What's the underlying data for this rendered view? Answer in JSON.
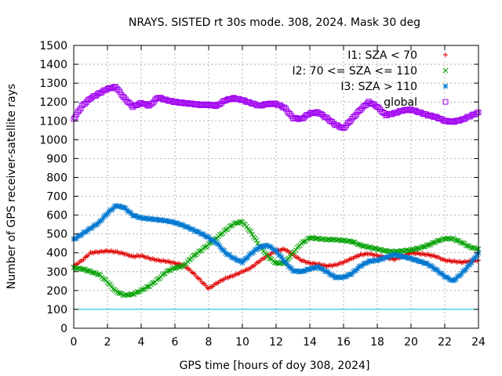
{
  "chart_data": {
    "type": "scatter",
    "title": "NRAYS. SISTED rt 30s mode. 308, 2024. Mask 30 deg",
    "xlabel": "GPS time [hours of doy 308, 2024]",
    "ylabel": "Number of GPS receiver-satellite rays",
    "xlim": [
      0,
      24
    ],
    "ylim": [
      0,
      1500
    ],
    "x_ticks": [
      0,
      2,
      4,
      6,
      8,
      10,
      12,
      14,
      16,
      18,
      20,
      22,
      24
    ],
    "y_ticks": [
      0,
      100,
      200,
      300,
      400,
      500,
      600,
      700,
      800,
      900,
      1000,
      1100,
      1200,
      1300,
      1400,
      1500
    ],
    "grid": true,
    "legend_position": "top-right",
    "reference_line": {
      "y": 100,
      "color": "#00c0d0"
    },
    "series": [
      {
        "name": "I1: SZA < 70",
        "marker": "+",
        "color": "#e00000",
        "x": [
          0,
          0.5,
          1,
          1.5,
          2,
          2.5,
          3,
          3.5,
          4,
          4.5,
          5,
          5.5,
          6,
          6.5,
          7,
          7.5,
          8,
          8.5,
          9,
          9.5,
          10,
          10.5,
          11,
          11.5,
          12,
          12.5,
          13,
          13.5,
          14,
          14.5,
          15,
          15.5,
          16,
          16.5,
          17,
          17.5,
          18,
          18.5,
          19,
          19.5,
          20,
          20.5,
          21,
          21.5,
          22,
          22.5,
          23,
          23.5,
          24
        ],
        "values": [
          330,
          360,
          400,
          405,
          410,
          405,
          395,
          380,
          385,
          370,
          360,
          355,
          345,
          335,
          300,
          255,
          210,
          240,
          265,
          280,
          300,
          320,
          355,
          385,
          410,
          420,
          390,
          360,
          345,
          340,
          330,
          335,
          350,
          370,
          390,
          395,
          385,
          375,
          365,
          380,
          400,
          395,
          390,
          380,
          360,
          355,
          350,
          355,
          360
        ]
      },
      {
        "name": "I2: 70 <= SZA <= 110",
        "marker": "x",
        "color": "#00a000",
        "x": [
          0,
          0.5,
          1,
          1.5,
          2,
          2.5,
          3,
          3.5,
          4,
          4.5,
          5,
          5.5,
          6,
          6.5,
          7,
          7.5,
          8,
          8.5,
          9,
          9.5,
          10,
          10.5,
          11,
          11.5,
          12,
          12.5,
          13,
          13.5,
          14,
          14.5,
          15,
          15.5,
          16,
          16.5,
          17,
          17.5,
          18,
          18.5,
          19,
          19.5,
          20,
          20.5,
          21,
          21.5,
          22,
          22.5,
          23,
          23.5,
          24
        ],
        "values": [
          320,
          315,
          300,
          285,
          245,
          195,
          175,
          180,
          200,
          225,
          260,
          300,
          320,
          330,
          375,
          410,
          445,
          480,
          520,
          555,
          565,
          510,
          440,
          380,
          345,
          345,
          400,
          450,
          480,
          475,
          470,
          470,
          465,
          460,
          440,
          430,
          420,
          410,
          405,
          410,
          415,
          425,
          440,
          460,
          475,
          475,
          455,
          430,
          420
        ]
      },
      {
        "name": "I3: SZA > 110",
        "marker": "*",
        "color": "#0078d0",
        "x": [
          0,
          0.5,
          1,
          1.5,
          2,
          2.5,
          3,
          3.5,
          4,
          4.5,
          5,
          5.5,
          6,
          6.5,
          7,
          7.5,
          8,
          8.5,
          9,
          9.5,
          10,
          10.5,
          11,
          11.5,
          12,
          12.5,
          13,
          13.5,
          14,
          14.5,
          15,
          15.5,
          16,
          16.5,
          17,
          17.5,
          18,
          18.5,
          19,
          19.5,
          20,
          20.5,
          21,
          21.5,
          22,
          22.5,
          23,
          23.5,
          24
        ],
        "values": [
          470,
          500,
          530,
          560,
          610,
          650,
          640,
          600,
          585,
          580,
          575,
          570,
          560,
          545,
          525,
          505,
          480,
          450,
          400,
          370,
          350,
          395,
          430,
          440,
          410,
          355,
          305,
          300,
          315,
          325,
          300,
          270,
          270,
          290,
          330,
          355,
          360,
          375,
          390,
          380,
          370,
          355,
          340,
          310,
          275,
          250,
          290,
          340,
          400
        ]
      },
      {
        "name": "global",
        "marker": "square",
        "color": "#a000f0",
        "x": [
          0,
          0.5,
          1,
          1.5,
          2,
          2.5,
          3,
          3.5,
          4,
          4.5,
          5,
          5.5,
          6,
          6.5,
          7,
          7.5,
          8,
          8.5,
          9,
          9.5,
          10,
          10.5,
          11,
          11.5,
          12,
          12.5,
          13,
          13.5,
          14,
          14.5,
          15,
          15.5,
          16,
          16.5,
          17,
          17.5,
          18,
          18.5,
          19,
          19.5,
          20,
          20.5,
          21,
          21.5,
          22,
          22.5,
          23,
          23.5,
          24
        ],
        "values": [
          1110,
          1180,
          1220,
          1245,
          1270,
          1280,
          1220,
          1175,
          1195,
          1180,
          1225,
          1210,
          1200,
          1195,
          1190,
          1185,
          1185,
          1180,
          1210,
          1220,
          1210,
          1195,
          1180,
          1190,
          1190,
          1170,
          1115,
          1110,
          1140,
          1145,
          1115,
          1080,
          1060,
          1110,
          1160,
          1200,
          1175,
          1130,
          1140,
          1155,
          1160,
          1145,
          1130,
          1120,
          1100,
          1095,
          1105,
          1125,
          1145
        ]
      }
    ]
  }
}
